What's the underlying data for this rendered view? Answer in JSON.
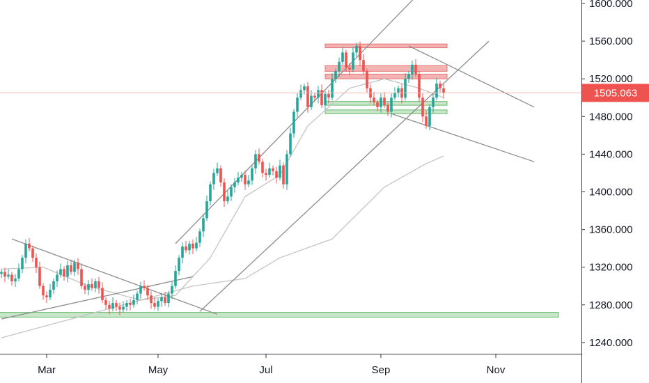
{
  "chart_data": {
    "type": "candlestick",
    "title": "",
    "xlabel": "",
    "ylabel": "",
    "ylim": [
      1223,
      1607
    ],
    "y_ticks": [
      "1240.000",
      "1280.000",
      "1320.000",
      "1360.000",
      "1400.000",
      "1440.000",
      "1480.000",
      "1520.000",
      "1560.000",
      "1600.000"
    ],
    "x_ticks": [
      "Mar",
      "May",
      "Jul",
      "Sep",
      "Nov"
    ],
    "last_price": "1505.063",
    "colors": {
      "up": "#26a69a",
      "down": "#ef5350",
      "resistance_zone": "#ef9a9a",
      "support_zone": "#a5d6a7",
      "support_border": "#66bb6a",
      "trendline": "#8c8c8c",
      "ma": "#c4c4c4",
      "price_line": "#f5b6b6",
      "axis": "#363a45"
    },
    "candles_close": [
      1315,
      1310,
      1312,
      1305,
      1308,
      1318,
      1330,
      1345,
      1340,
      1330,
      1320,
      1300,
      1290,
      1288,
      1296,
      1305,
      1312,
      1318,
      1310,
      1322,
      1315,
      1325,
      1318,
      1300,
      1296,
      1302,
      1298,
      1305,
      1298,
      1285,
      1280,
      1276,
      1282,
      1278,
      1275,
      1278,
      1282,
      1280,
      1285,
      1292,
      1300,
      1298,
      1290,
      1282,
      1278,
      1284,
      1288,
      1282,
      1292,
      1300,
      1316,
      1330,
      1342,
      1338,
      1345,
      1340,
      1346,
      1358,
      1372,
      1390,
      1408,
      1420,
      1425,
      1410,
      1390,
      1395,
      1405,
      1410,
      1415,
      1418,
      1408,
      1412,
      1425,
      1440,
      1432,
      1420,
      1418,
      1425,
      1422,
      1415,
      1428,
      1408,
      1440,
      1462,
      1485,
      1500,
      1508,
      1512,
      1490,
      1502,
      1500,
      1508,
      1492,
      1504,
      1500,
      1520,
      1528,
      1538,
      1548,
      1532,
      1530,
      1548,
      1555,
      1540,
      1528,
      1510,
      1500,
      1495,
      1490,
      1500,
      1492,
      1485,
      1500,
      1505,
      1510,
      1500,
      1520,
      1525,
      1535,
      1525,
      1500,
      1480,
      1470,
      1490,
      1500,
      1515,
      1510,
      1505
    ],
    "ma_fast": [
      [
        0,
        1318
      ],
      [
        12,
        1320
      ],
      [
        25,
        1300
      ],
      [
        40,
        1285
      ],
      [
        50,
        1290
      ],
      [
        60,
        1330
      ],
      [
        70,
        1395
      ],
      [
        80,
        1418
      ],
      [
        88,
        1470
      ],
      [
        100,
        1510
      ],
      [
        110,
        1520
      ],
      [
        120,
        1510
      ],
      [
        127,
        1500
      ]
    ],
    "ma_slow": [
      [
        0,
        1245
      ],
      [
        20,
        1265
      ],
      [
        40,
        1285
      ],
      [
        55,
        1300
      ],
      [
        70,
        1308
      ],
      [
        80,
        1330
      ],
      [
        95,
        1350
      ],
      [
        110,
        1405
      ],
      [
        122,
        1430
      ],
      [
        127,
        1438
      ]
    ],
    "trendlines": [
      {
        "from": [
          3,
          1350
        ],
        "to": [
          62,
          1270
        ]
      },
      {
        "from": [
          0,
          1265
        ],
        "to": [
          55,
          1310
        ]
      },
      {
        "from": [
          50,
          1345
        ],
        "to": [
          125,
          1630
        ]
      },
      {
        "from": [
          57,
          1273
        ],
        "to": [
          140,
          1560
        ]
      },
      {
        "from": [
          117,
          1555
        ],
        "to": [
          153,
          1490
        ]
      },
      {
        "from": [
          112,
          1483
        ],
        "to": [
          153,
          1432
        ]
      }
    ],
    "zones": [
      {
        "kind": "resistance",
        "from": 93,
        "to": 128,
        "y_low": 1553,
        "y_high": 1557
      },
      {
        "kind": "resistance",
        "from": 93,
        "to": 128,
        "y_low": 1528,
        "y_high": 1534
      },
      {
        "kind": "resistance",
        "from": 93,
        "to": 128,
        "y_low": 1520,
        "y_high": 1525
      },
      {
        "kind": "support",
        "from": 93,
        "to": 128,
        "y_low": 1492,
        "y_high": 1496
      },
      {
        "kind": "support",
        "from": 93,
        "to": 128,
        "y_low": 1483,
        "y_high": 1487
      },
      {
        "kind": "support",
        "from": -8,
        "to": 160,
        "y_low": 1267,
        "y_high": 1272
      }
    ]
  }
}
